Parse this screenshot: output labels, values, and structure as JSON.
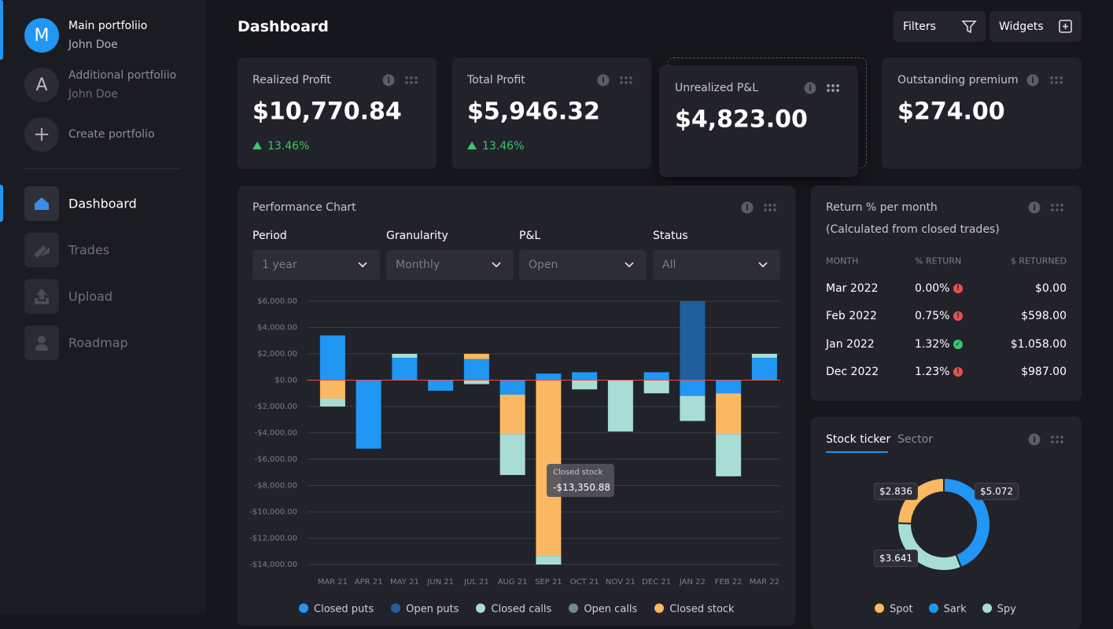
{
  "sidebar": {
    "portfolios": [
      {
        "avatar": "M",
        "name": "Main portfoliio",
        "user": "John Doe"
      },
      {
        "avatar": "A",
        "name": "Additional portfoliio",
        "user": "John Doe"
      }
    ],
    "create": "Create portfolio",
    "nav": [
      "Dashboard",
      "Trades",
      "Upload",
      "Roadmap"
    ]
  },
  "header": {
    "title": "Dashboard",
    "buttons": [
      "Filters",
      "Widgets"
    ]
  },
  "cards": [
    {
      "label": "Realized Profit",
      "value": "$10,770.84",
      "change": "13.46%"
    },
    {
      "label": "Total Profit",
      "value": "$5,946.32",
      "change": "13.46%"
    },
    {
      "label": "Unrealized P&L",
      "value": "$4,823.00"
    },
    {
      "label": "Outstanding premium",
      "value": "$274.00"
    }
  ],
  "performance": {
    "title": "Performance Chart",
    "filters": [
      {
        "label": "Period",
        "value": "1 year"
      },
      {
        "label": "Granularity",
        "value": "Monthly"
      },
      {
        "label": "P&L",
        "value": "Open"
      },
      {
        "label": "Status",
        "value": "All"
      }
    ]
  },
  "chart_data": {
    "type": "bar",
    "stacked": true,
    "categories": [
      "MAR 21",
      "APR 21",
      "MAY 21",
      "JUN 21",
      "JUL 21",
      "AUG 21",
      "SEP 21",
      "OCT 21",
      "NOV 21",
      "DEC 21",
      "JAN 22",
      "FEB 22",
      "MAR 22"
    ],
    "series": [
      {
        "name": "Closed puts",
        "color": "#2196f3",
        "values": [
          3400,
          -5200,
          1700,
          -800,
          1600,
          -1100,
          500,
          600,
          0,
          600,
          -1200,
          -1000,
          1700
        ]
      },
      {
        "name": "Open puts",
        "color": "#1f5f9e",
        "values": [
          0,
          0,
          0,
          0,
          0,
          0,
          0,
          0,
          0,
          0,
          6000,
          0,
          0
        ]
      },
      {
        "name": "Closed calls",
        "color": "#a8ddd6",
        "values": [
          -600,
          0,
          300,
          0,
          -300,
          -3100,
          -650,
          -700,
          -3900,
          -1000,
          -1900,
          -3200,
          300
        ]
      },
      {
        "name": "Open calls",
        "color": "#6f8c8c",
        "values": [
          0,
          0,
          0,
          0,
          0,
          0,
          0,
          0,
          0,
          0,
          0,
          0,
          0
        ]
      },
      {
        "name": "Closed stock",
        "color": "#fbb862",
        "values": [
          -1400,
          0,
          0,
          0,
          400,
          -3000,
          -13350.88,
          0,
          0,
          0,
          0,
          -3100,
          0
        ],
        "value_labels": [
          null,
          null,
          null,
          null,
          null,
          null,
          "-$13,350.88",
          null,
          null,
          null,
          null,
          null,
          null
        ]
      }
    ],
    "ylim": [
      -14000,
      6000
    ],
    "yticks": [
      {
        "value": 6000,
        "label": "$6,000.00"
      },
      {
        "value": 4000,
        "label": "$4,000.00"
      },
      {
        "value": 2000,
        "label": "$2,000.00"
      },
      {
        "value": 0,
        "label": "$0.00"
      },
      {
        "value": -2000,
        "label": "-$2,000.00"
      },
      {
        "value": -4000,
        "label": "-$4,000.00"
      },
      {
        "value": -6000,
        "label": "-$6,000.00"
      },
      {
        "value": -8000,
        "label": "-$8,000.00"
      },
      {
        "value": -10000,
        "label": "-$10,000.00"
      },
      {
        "value": -12000,
        "label": "-$12,000.00"
      },
      {
        "value": -14000,
        "label": "-$14,000.00"
      }
    ],
    "grid": true
  },
  "returns": {
    "title": "Return % per month",
    "subtitle": "(Calculated from closed trades)",
    "columns": [
      "MONTH",
      "% RETURN",
      "$ RETURNED"
    ],
    "rows": [
      [
        "Mar 2022",
        "0.00%",
        "$0.00"
      ],
      [
        "Feb 2022",
        "0.75%",
        "$598.00"
      ],
      [
        "Jan 2022",
        "1.32%",
        "$1.058.00"
      ],
      [
        "Dec 2022",
        "1.23%",
        "$987.00"
      ]
    ]
  },
  "ticker": {
    "tabs": [
      "Stock ticker",
      "Sector"
    ],
    "chart": {
      "type": "pie",
      "categories": [
        "Spot",
        "Sark",
        "Spy"
      ],
      "colors": [
        "#fbb862",
        "#2196f3",
        "#a8ddd6"
      ],
      "values": [
        2.836,
        5.072,
        3.641
      ],
      "value_labels": [
        "$2.836",
        "$5.072",
        "$3.641"
      ]
    }
  }
}
